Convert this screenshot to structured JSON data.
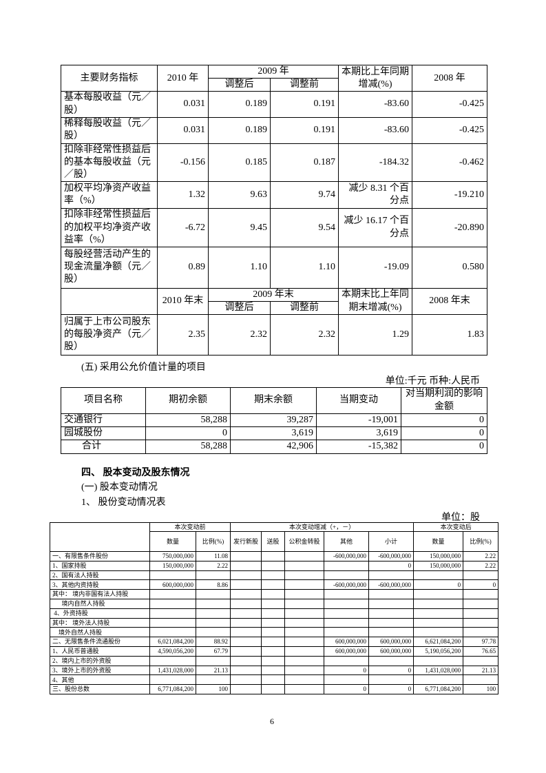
{
  "table1": {
    "header": {
      "label": "主要财务指标",
      "year2010": "2010 年",
      "year2009": "2009 年",
      "adjusted_after": "调整后",
      "adjusted_before": "调整前",
      "change": "本期比上年同期增减(%)",
      "year2008": "2008 年"
    },
    "rows": [
      [
        "基本每股收益（元／股）",
        "0.031",
        "0.189",
        "0.191",
        "-83.60",
        "-0.425"
      ],
      [
        "稀释每股收益（元／股）",
        "0.031",
        "0.189",
        "0.191",
        "-83.60",
        "-0.425"
      ],
      [
        "扣除非经常性损益后的基本每股收益（元／股）",
        "-0.156",
        "0.185",
        "0.187",
        "-184.32",
        "-0.462"
      ],
      [
        "加权平均净资产收益率（%）",
        "1.32",
        "9.63",
        "9.74",
        "减少 8.31 个百分点",
        "-19.210"
      ],
      [
        "扣除非经常性损益后的加权平均净资产收益率（%）",
        "-6.72",
        "9.45",
        "9.54",
        "减少 16.17 个百分点",
        "-20.890"
      ],
      [
        "每股经营活动产生的现金流量净额（元／股）",
        "0.89",
        "1.10",
        "1.10",
        "-19.09",
        "0.580"
      ]
    ],
    "header2": {
      "year2010": "2010 年末",
      "year2009": "2009 年末",
      "adjusted_after": "调整后",
      "adjusted_before": "调整前",
      "change": "本期末比上年同期末增减(%)",
      "year2008": "2008 年末"
    },
    "last_row": [
      "归属于上市公司股东的每股净资产（元／股）",
      "2.35",
      "2.32",
      "2.32",
      "1.29",
      "1.83"
    ]
  },
  "section5": {
    "title": "(五) 采用公允价值计量的项目",
    "unit": "单位:千元 币种:人民币"
  },
  "table2": {
    "header": [
      "项目名称",
      "期初余额",
      "期末余额",
      "当期变动",
      "对当期利润的影响金额"
    ],
    "rows": [
      [
        "交通银行",
        "58,288",
        "39,287",
        "-19,001",
        "0"
      ],
      [
        "园城股份",
        "0",
        "3,619",
        "3,619",
        "0"
      ],
      [
        "合计",
        "58,288",
        "42,906",
        "-15,382",
        "0"
      ]
    ]
  },
  "section4": {
    "title": "四、 股本变动及股东情况",
    "sub1": "(一) 股本变动情况",
    "sub1_1": "1、 股份变动情况表",
    "unit": "单位：股"
  },
  "table3": {
    "header_groups": [
      "本次变动前",
      "本次变动增减（+，－）",
      "本次变动后"
    ],
    "header": [
      "数量",
      "比例(%)",
      "发行新股",
      "送股",
      "公积金转股",
      "其他",
      "小计",
      "数量",
      "比例(%)"
    ],
    "rows": [
      [
        "一、有限售条件股份",
        "750,000,000",
        "11.08",
        null,
        null,
        null,
        "-600,000,000",
        "-600,000,000",
        "150,000,000",
        "2.22"
      ],
      [
        "1、国家持股",
        "150,000,000",
        "2.22",
        null,
        null,
        null,
        null,
        "0",
        "150,000,000",
        "2.22"
      ],
      [
        "2、国有法人持股",
        null,
        null,
        null,
        null,
        null,
        null,
        null,
        null,
        null
      ],
      [
        "3、其他内资持股",
        "600,000,000",
        "8.86",
        null,
        null,
        null,
        "-600,000,000",
        "-600,000,000",
        "0",
        "0"
      ],
      [
        "其中： 境内非国有法人持股",
        null,
        null,
        null,
        null,
        null,
        null,
        null,
        null,
        null
      ],
      [
        "      境内自然人持股",
        null,
        null,
        null,
        null,
        null,
        null,
        null,
        null,
        null
      ],
      [
        " 4、外资持股",
        null,
        null,
        null,
        null,
        null,
        null,
        null,
        null,
        null
      ],
      [
        "其中： 境外法人持股",
        null,
        null,
        null,
        null,
        null,
        null,
        null,
        null,
        null
      ],
      [
        "    境外自然人持股",
        null,
        null,
        null,
        null,
        null,
        null,
        null,
        null,
        null
      ],
      [
        "二、无限售条件流通股份",
        "6,021,084,200",
        "88.92",
        null,
        null,
        null,
        "600,000,000",
        "600,000,000",
        "6,621,084,200",
        "97.78"
      ],
      [
        "1、人民币普通股",
        "4,590,056,200",
        "67.79",
        null,
        null,
        null,
        "600,000,000",
        "600,000,000",
        "5,190,056,200",
        "76.65"
      ],
      [
        "2、境内上市的外资股",
        null,
        null,
        null,
        null,
        null,
        null,
        null,
        null,
        null
      ],
      [
        "3、境外上市的外资股",
        "1,431,028,000",
        "21.13",
        null,
        null,
        null,
        "0",
        "0",
        "1,431,028,000",
        "21.13"
      ],
      [
        "4、其他",
        null,
        null,
        null,
        null,
        null,
        null,
        null,
        null,
        null
      ],
      [
        "三、股份总数",
        "6,771,084,200",
        "100",
        null,
        null,
        null,
        "0",
        "0",
        "6,771,084,200",
        "100"
      ]
    ]
  },
  "page_number": "6"
}
